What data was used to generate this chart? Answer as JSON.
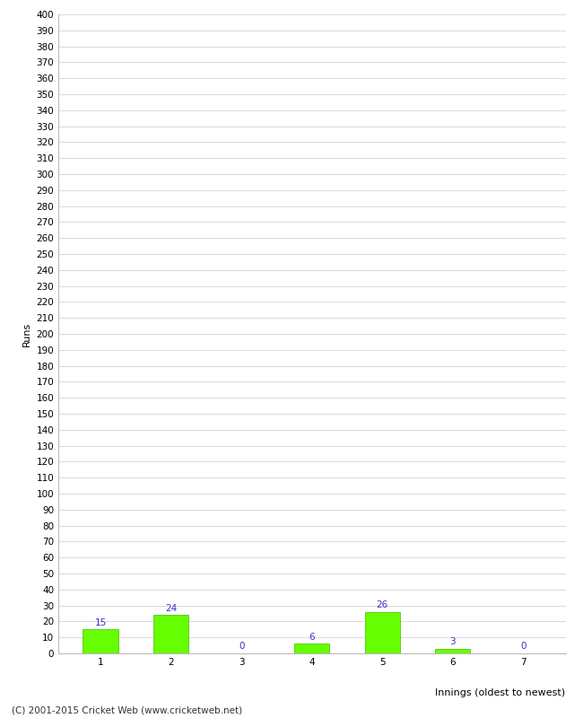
{
  "categories": [
    "1",
    "2",
    "3",
    "4",
    "5",
    "6",
    "7"
  ],
  "values": [
    15,
    24,
    0,
    6,
    26,
    3,
    0
  ],
  "bar_color": "#66ff00",
  "bar_edge_color": "#44bb00",
  "label_color": "#3333cc",
  "ylabel": "Runs",
  "xlabel": "Innings (oldest to newest)",
  "footer": "(C) 2001-2015 Cricket Web (www.cricketweb.net)",
  "ylim": [
    0,
    400
  ],
  "yticks": [
    0,
    10,
    20,
    30,
    40,
    50,
    60,
    70,
    80,
    90,
    100,
    110,
    120,
    130,
    140,
    150,
    160,
    170,
    180,
    190,
    200,
    210,
    220,
    230,
    240,
    250,
    260,
    270,
    280,
    290,
    300,
    310,
    320,
    330,
    340,
    350,
    360,
    370,
    380,
    390,
    400
  ],
  "background_color": "#ffffff",
  "grid_color": "#cccccc",
  "label_fontsize": 7.5,
  "axis_tick_fontsize": 7.5,
  "axis_label_fontsize": 8,
  "footer_fontsize": 7.5
}
